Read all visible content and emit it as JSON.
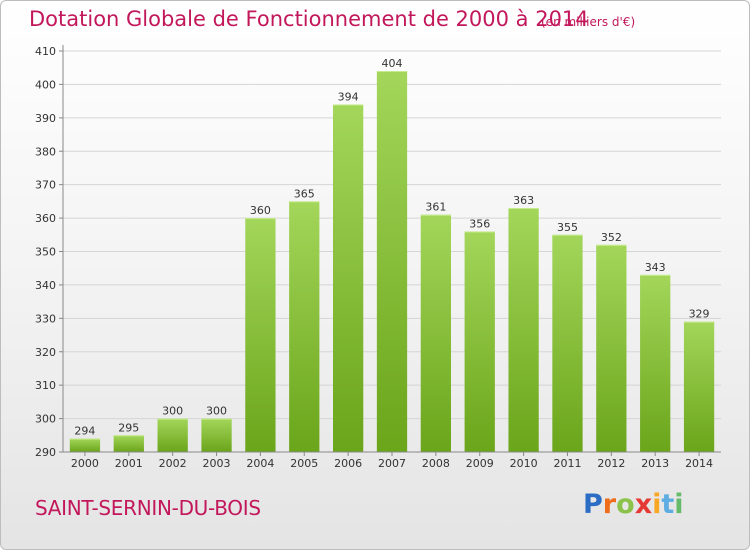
{
  "title": "Dotation Globale de Fonctionnement de 2000 à 2014",
  "subtitle": "(en milliers d'€)",
  "commune": "SAINT-SERNIN-DU-BOIS",
  "logo": {
    "text": "Proxiti",
    "letter_colors": [
      "#2b6cc4",
      "#ef6c1a",
      "#8bc34a",
      "#e53935",
      "#f9a825",
      "#5dade2",
      "#66bb6a"
    ]
  },
  "colors": {
    "title": "#c2185b",
    "bar_light": "#a3d65a",
    "bar_dark": "#6aa51a",
    "grid": "#d5d5d5",
    "axis_text": "#333333"
  },
  "chart_data": {
    "type": "bar",
    "title": "Dotation Globale de Fonctionnement de 2000 à 2014",
    "subtitle": "(en milliers d'€)",
    "categories": [
      "2000",
      "2001",
      "2002",
      "2003",
      "2004",
      "2005",
      "2006",
      "2007",
      "2008",
      "2009",
      "2010",
      "2011",
      "2012",
      "2013",
      "2014"
    ],
    "values": [
      294,
      295,
      300,
      300,
      360,
      365,
      394,
      404,
      361,
      356,
      363,
      355,
      352,
      343,
      329
    ],
    "yticks": [
      290,
      300,
      310,
      320,
      330,
      340,
      350,
      360,
      370,
      380,
      390,
      400,
      410
    ],
    "ylim": [
      290,
      410
    ],
    "grid": true,
    "xlabel": "",
    "ylabel": ""
  }
}
